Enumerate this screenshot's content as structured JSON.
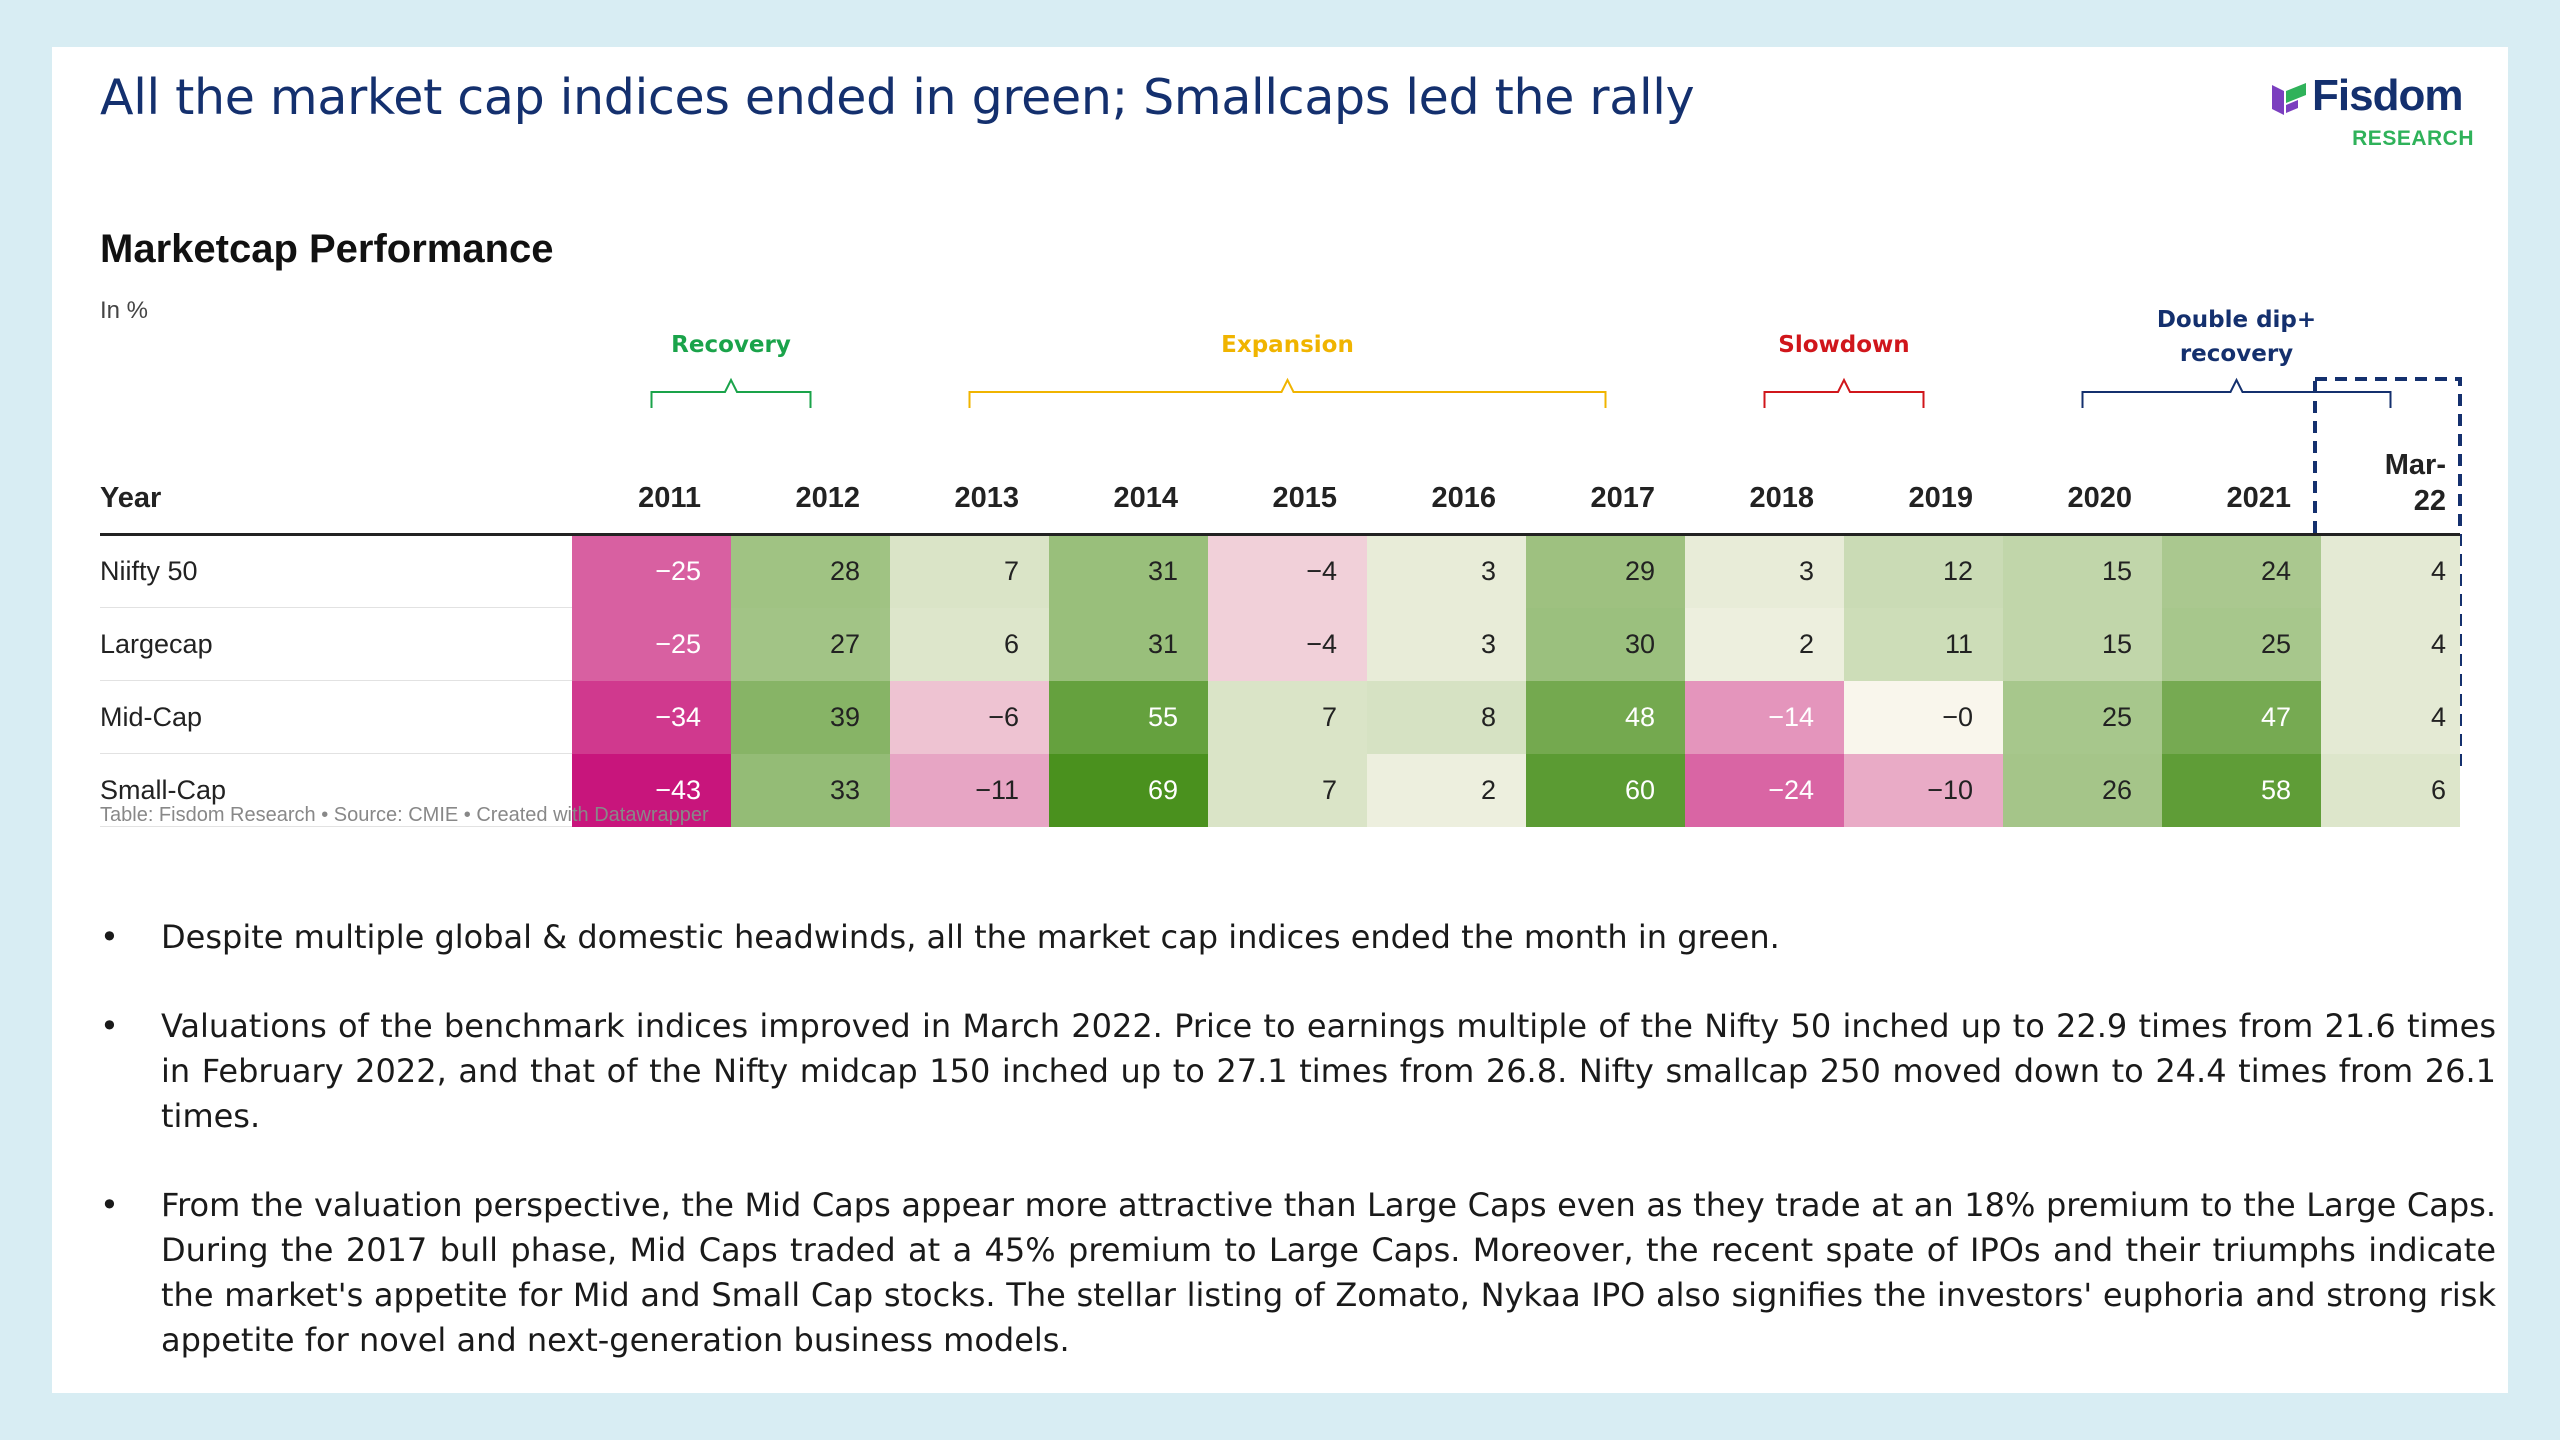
{
  "headline": "All the market cap indices ended in green; Smallcaps led the rally",
  "logo": {
    "name": "Fisdom",
    "sub": "RESEARCH"
  },
  "chart_data": {
    "type": "heatmap",
    "title": "Marketcap Performance",
    "subtitle": "In %",
    "header_label": "Year",
    "columns": [
      "2011",
      "2012",
      "2013",
      "2014",
      "2015",
      "2016",
      "2017",
      "2018",
      "2019",
      "2020",
      "2021",
      "Mar-22"
    ],
    "rows": [
      {
        "name": "Niifty 50",
        "values": [
          "−25",
          "28",
          "7",
          "31",
          "−4",
          "3",
          "29",
          "3",
          "12",
          "15",
          "24",
          "4"
        ]
      },
      {
        "name": "Largecap",
        "values": [
          "−25",
          "27",
          "6",
          "31",
          "−4",
          "3",
          "30",
          "2",
          "11",
          "15",
          "25",
          "4"
        ]
      },
      {
        "name": "Mid-Cap",
        "values": [
          "−34",
          "39",
          "−6",
          "55",
          "7",
          "8",
          "48",
          "−14",
          "−0",
          "25",
          "47",
          "4"
        ]
      },
      {
        "name": "Small-Cap",
        "values": [
          "−43",
          "33",
          "−11",
          "69",
          "7",
          "2",
          "60",
          "−24",
          "−10",
          "26",
          "58",
          "6"
        ]
      }
    ],
    "phases": [
      {
        "label": "Recovery",
        "from": "2011",
        "to": "2012",
        "color": "#1aa34a"
      },
      {
        "label": "Expansion",
        "from": "2013",
        "to": "2017",
        "color": "#f0b400"
      },
      {
        "label": "Slowdown",
        "from": "2018",
        "to": "2019",
        "color": "#d0161b"
      },
      {
        "label": "Double dip+ recovery",
        "from": "2020",
        "to": "Mar-22",
        "color": "#14306e"
      }
    ],
    "highlight_column": "Mar-22",
    "colors": {
      "negative_strong": "#c8157c",
      "positive_strong": "#4a911e",
      "neutral": "#f9f6ec"
    }
  },
  "source_line": "Table: Fisdom Research • Source: CMIE • Created with Datawrapper",
  "bullets": [
    "Despite multiple global & domestic headwinds, all the market cap indices ended the month in green.",
    "Valuations of the benchmark indices improved in March 2022. Price to earnings multiple of the Nifty 50 inched up to 22.9 times from 21.6 times in February 2022, and that of the Nifty midcap 150 inched up to 27.1 times from 26.8. Nifty smallcap 250 moved down to 24.4 times from 26.1 times.",
    "From the valuation perspective, the Mid Caps appear more attractive than Large Caps even as they trade at an 18% premium to the Large Caps. During the 2017 bull phase, Mid Caps traded at a 45% premium to Large Caps. Moreover, the recent spate of IPOs and their triumphs indicate the market's appetite for Mid and Small Cap stocks. The stellar listing of Zomato, Nykaa IPO also signifies the investors' euphoria and strong risk appetite for novel and next-generation business models."
  ],
  "bullet_marker": "•"
}
